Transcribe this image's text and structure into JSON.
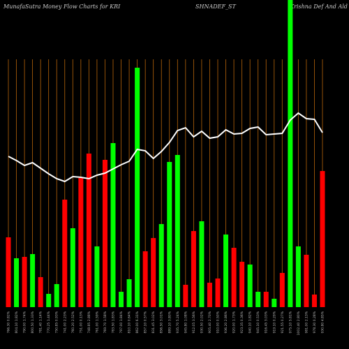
{
  "chart_data": {
    "type": "bar",
    "title": [
      "MunafaSutra  Money Flow  Charts for KRI",
      "SHNADEF_ST",
      "(Krishna  Def  And Ald In"
    ],
    "categories": [
      "766.30 0.82%",
      "804.10 1.82%",
      "790.00 1.74%",
      "800.50 1.33%",
      "781.40 1.14%",
      "770.25 1.44%",
      "750.85 0.93%",
      "741.00 2.23%",
      "760.20 2.52%",
      "751.00 0.13%",
      "748.85 2.88%",
      "761.00 1.59%",
      "769.70 1.58%",
      "783.50 1.83%",
      "797.00 1.84%",
      "810.10 0.64%",
      "862.00 6.31%",
      "857.10 0.57%",
      "831.45 3.02%",
      "856.50 3.01%",
      "889.10 3.80%",
      "935.70 5.24%",
      "945.80 1.08%",
      "912.05 3.56%",
      "930.50 2.02%",
      "905.40 2.70%",
      "910.00 0.50%",
      "936.20 2.86%",
      "920.00 1.73%",
      "923.35 0.36%",
      "940.10 1.82%",
      "945.10 0.53%",
      "916.45 3.03%",
      "919.10 0.29%",
      "921.55 0.27%",
      "975.10 5.81%",
      "1002.40 2.80%",
      "981.00 2.13%",
      "978.30 0.28%",
      "930.80 4.85%"
    ],
    "values": [
      100,
      70,
      72,
      76,
      43,
      19,
      33,
      154,
      113,
      185,
      220,
      87,
      211,
      235,
      22,
      40,
      343,
      80,
      99,
      119,
      208,
      218,
      32,
      109,
      123,
      35,
      41,
      104,
      85,
      65,
      61,
      22,
      22,
      12,
      49,
      440,
      87,
      75,
      18,
      195
    ],
    "colors": [
      "#ff0000",
      "#00ff00",
      "#ff0000",
      "#00ff00",
      "#ff0000",
      "#00ff00",
      "#00ff00",
      "#ff0000",
      "#00ff00",
      "#ff0000",
      "#ff0000",
      "#00ff00",
      "#ff0000",
      "#00ff00",
      "#00ff00",
      "#00ff00",
      "#00ff00",
      "#ff0000",
      "#ff0000",
      "#00ff00",
      "#00ff00",
      "#00ff00",
      "#ff0000",
      "#ff0000",
      "#00ff00",
      "#ff0000",
      "#ff0000",
      "#00ff00",
      "#ff0000",
      "#ff0000",
      "#00ff00",
      "#00ff00",
      "#ff0000",
      "#00ff00",
      "#ff0000",
      "#00ff00",
      "#00ff00",
      "#ff0000",
      "#ff0000",
      "#ff0000"
    ],
    "line": {
      "color": "#ffffff",
      "values": [
        216,
        210,
        203,
        207,
        199,
        191,
        184,
        180,
        187,
        186,
        184,
        189,
        192,
        198,
        204,
        209,
        226,
        224,
        213,
        223,
        236,
        253,
        257,
        244,
        252,
        242,
        244,
        254,
        248,
        249,
        256,
        258,
        247,
        248,
        249,
        268,
        278,
        270,
        269,
        250
      ]
    },
    "grid_color": "#b8650a",
    "ylim": [
      0,
      440
    ]
  }
}
